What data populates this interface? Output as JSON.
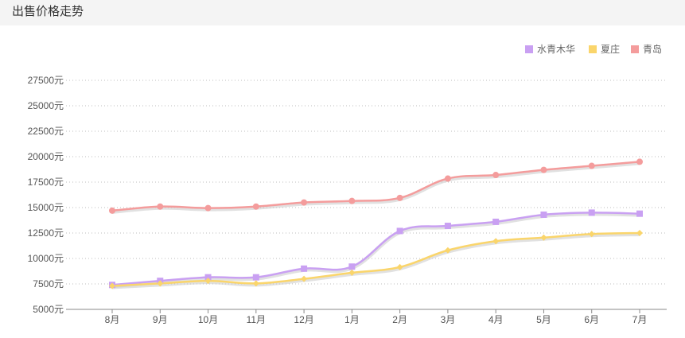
{
  "header": {
    "title": "出售价格走势"
  },
  "chart_data": {
    "type": "line",
    "title": "",
    "xlabel": "",
    "ylabel": "",
    "categories": [
      "8月",
      "9月",
      "10月",
      "11月",
      "12月",
      "1月",
      "2月",
      "3月",
      "4月",
      "5月",
      "6月",
      "7月"
    ],
    "y_ticks": [
      "5000元",
      "7500元",
      "10000元",
      "12500元",
      "15000元",
      "17500元",
      "20000元",
      "22500元",
      "25000元",
      "27500元"
    ],
    "ylim": [
      5000,
      28750
    ],
    "grid": "horizontal-dotted",
    "legend_position": "top-right",
    "series": [
      {
        "name": "水青木华",
        "color": "#c9a0f2",
        "marker": "square",
        "values": [
          7400,
          7800,
          8150,
          8150,
          9000,
          9200,
          12700,
          13200,
          13600,
          14300,
          14500,
          14400
        ]
      },
      {
        "name": "夏庄",
        "color": "#fad56b",
        "marker": "diamond",
        "values": [
          7300,
          7550,
          7800,
          7550,
          8000,
          8600,
          9150,
          10800,
          11700,
          12050,
          12400,
          12500
        ]
      },
      {
        "name": "青岛",
        "color": "#f49c9c",
        "marker": "circle",
        "values": [
          14700,
          15100,
          14950,
          15100,
          15500,
          15650,
          15950,
          17850,
          18200,
          18700,
          19100,
          19500
        ]
      }
    ]
  }
}
